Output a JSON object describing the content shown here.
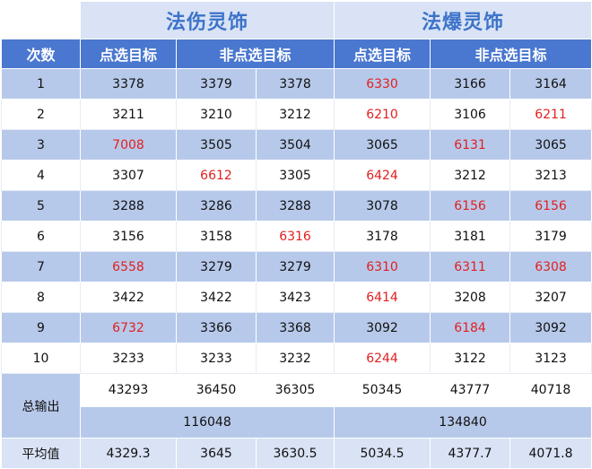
{
  "titles": {
    "left": "法伤灵饰",
    "right": "法爆灵饰"
  },
  "headers": {
    "count": "次数",
    "selected_left": "点选目标",
    "non_selected_left": "非点选目标",
    "selected_right": "点选目标",
    "non_selected_right": "非点选目标"
  },
  "rows": [
    {
      "n": "1",
      "c": [
        {
          "v": "3378",
          "red": false
        },
        {
          "v": "3379",
          "red": false
        },
        {
          "v": "3378",
          "red": false
        },
        {
          "v": "6330",
          "red": true
        },
        {
          "v": "3166",
          "red": false
        },
        {
          "v": "3164",
          "red": false
        }
      ]
    },
    {
      "n": "2",
      "c": [
        {
          "v": "3211",
          "red": false
        },
        {
          "v": "3210",
          "red": false
        },
        {
          "v": "3212",
          "red": false
        },
        {
          "v": "6210",
          "red": true
        },
        {
          "v": "3106",
          "red": false
        },
        {
          "v": "6211",
          "red": true
        }
      ]
    },
    {
      "n": "3",
      "c": [
        {
          "v": "7008",
          "red": true
        },
        {
          "v": "3505",
          "red": false
        },
        {
          "v": "3504",
          "red": false
        },
        {
          "v": "3065",
          "red": false
        },
        {
          "v": "6131",
          "red": true
        },
        {
          "v": "3065",
          "red": false
        }
      ]
    },
    {
      "n": "4",
      "c": [
        {
          "v": "3307",
          "red": false
        },
        {
          "v": "6612",
          "red": true
        },
        {
          "v": "3305",
          "red": false
        },
        {
          "v": "6424",
          "red": true
        },
        {
          "v": "3212",
          "red": false
        },
        {
          "v": "3213",
          "red": false
        }
      ]
    },
    {
      "n": "5",
      "c": [
        {
          "v": "3288",
          "red": false
        },
        {
          "v": "3286",
          "red": false
        },
        {
          "v": "3288",
          "red": false
        },
        {
          "v": "3078",
          "red": false
        },
        {
          "v": "6156",
          "red": true
        },
        {
          "v": "6156",
          "red": true
        }
      ]
    },
    {
      "n": "6",
      "c": [
        {
          "v": "3156",
          "red": false
        },
        {
          "v": "3158",
          "red": false
        },
        {
          "v": "6316",
          "red": true
        },
        {
          "v": "3178",
          "red": false
        },
        {
          "v": "3181",
          "red": false
        },
        {
          "v": "3179",
          "red": false
        }
      ]
    },
    {
      "n": "7",
      "c": [
        {
          "v": "6558",
          "red": true
        },
        {
          "v": "3279",
          "red": false
        },
        {
          "v": "3279",
          "red": false
        },
        {
          "v": "6310",
          "red": true
        },
        {
          "v": "6311",
          "red": true
        },
        {
          "v": "6308",
          "red": true
        }
      ]
    },
    {
      "n": "8",
      "c": [
        {
          "v": "3422",
          "red": false
        },
        {
          "v": "3422",
          "red": false
        },
        {
          "v": "3423",
          "red": false
        },
        {
          "v": "6414",
          "red": true
        },
        {
          "v": "3208",
          "red": false
        },
        {
          "v": "3207",
          "red": false
        }
      ]
    },
    {
      "n": "9",
      "c": [
        {
          "v": "6732",
          "red": true
        },
        {
          "v": "3366",
          "red": false
        },
        {
          "v": "3368",
          "red": false
        },
        {
          "v": "3092",
          "red": false
        },
        {
          "v": "6184",
          "red": true
        },
        {
          "v": "3092",
          "red": false
        }
      ]
    },
    {
      "n": "10",
      "c": [
        {
          "v": "3233",
          "red": false
        },
        {
          "v": "3233",
          "red": false
        },
        {
          "v": "3232",
          "red": false
        },
        {
          "v": "6244",
          "red": true
        },
        {
          "v": "3122",
          "red": false
        },
        {
          "v": "3123",
          "red": false
        }
      ]
    }
  ],
  "total": {
    "label": "总输出",
    "values": [
      "43293",
      "36450",
      "36305",
      "50345",
      "43777",
      "40718"
    ],
    "grand_left": "116048",
    "grand_right": "134840"
  },
  "average": {
    "label": "平均值",
    "values": [
      "4329.3",
      "3645",
      "3630.5",
      "5034.5",
      "4377.7",
      "4071.8"
    ]
  },
  "colors": {
    "title_bg": "#d9e3f5",
    "title_text": "#3d73c9",
    "header_bg": "#4a77cf",
    "band_bg": "#b7c9ea",
    "highlight": "#e02020"
  }
}
